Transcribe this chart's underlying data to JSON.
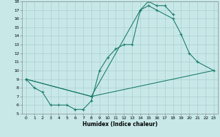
{
  "xlabel": "Humidex (Indice chaleur)",
  "bg_color": "#c8e8e8",
  "grid_color": "#a8cece",
  "line_color": "#1a7a6a",
  "xlim": [
    -0.5,
    23.5
  ],
  "ylim": [
    5,
    18
  ],
  "xticks": [
    0,
    1,
    2,
    3,
    4,
    5,
    6,
    7,
    8,
    9,
    10,
    11,
    12,
    13,
    14,
    15,
    16,
    17,
    18,
    19,
    20,
    21,
    22,
    23
  ],
  "yticks": [
    5,
    6,
    7,
    8,
    9,
    10,
    11,
    12,
    13,
    14,
    15,
    16,
    17,
    18
  ],
  "line1_x": [
    0,
    1,
    2,
    3,
    4,
    5,
    6,
    7,
    8,
    9,
    10,
    11,
    12,
    13,
    14,
    15,
    16,
    17,
    18
  ],
  "line1_y": [
    9.0,
    8.0,
    7.5,
    6.0,
    6.0,
    6.0,
    5.5,
    5.5,
    6.5,
    10.0,
    11.5,
    12.5,
    13.0,
    13.0,
    17.0,
    18.0,
    17.5,
    17.5,
    16.5
  ],
  "line2_x": [
    0,
    8,
    14,
    15,
    16,
    18,
    19,
    20,
    21,
    23
  ],
  "line2_y": [
    9.0,
    7.0,
    17.0,
    17.5,
    17.0,
    16.0,
    14.2,
    12.0,
    11.0,
    10.0
  ],
  "line3_x": [
    0,
    8,
    23
  ],
  "line3_y": [
    9.0,
    7.0,
    10.0
  ]
}
